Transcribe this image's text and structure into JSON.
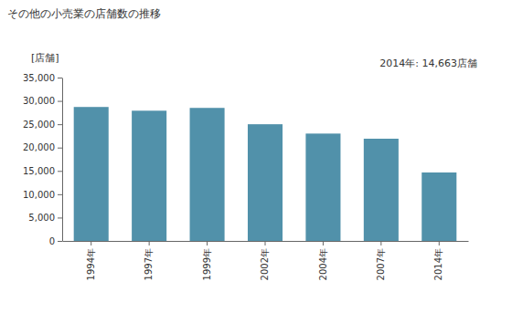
{
  "chart_data": {
    "type": "bar",
    "title": "その他の小売業の店舗数の推移",
    "y_label": "[店舗]",
    "annotation": "2014年: 14,663店舗",
    "categories": [
      "1994年",
      "1997年",
      "1999年",
      "2002年",
      "2004年",
      "2007年",
      "2014年"
    ],
    "values": [
      28700,
      27900,
      28500,
      25000,
      23000,
      21900,
      14663
    ],
    "color": "#5191aa",
    "ylim": [
      0,
      35000
    ],
    "yticks": [
      0,
      {
        "value": 5000,
        "label": "5,000"
      },
      {
        "value": 10000,
        "label": "10,000"
      },
      {
        "value": 15000,
        "label": "15,000"
      },
      {
        "value": 20000,
        "label": "20,000"
      },
      {
        "value": 25000,
        "label": "25,000"
      },
      {
        "value": 30000,
        "label": "30,000"
      },
      {
        "value": 35000,
        "label": "35,000"
      }
    ],
    "grid": false
  }
}
